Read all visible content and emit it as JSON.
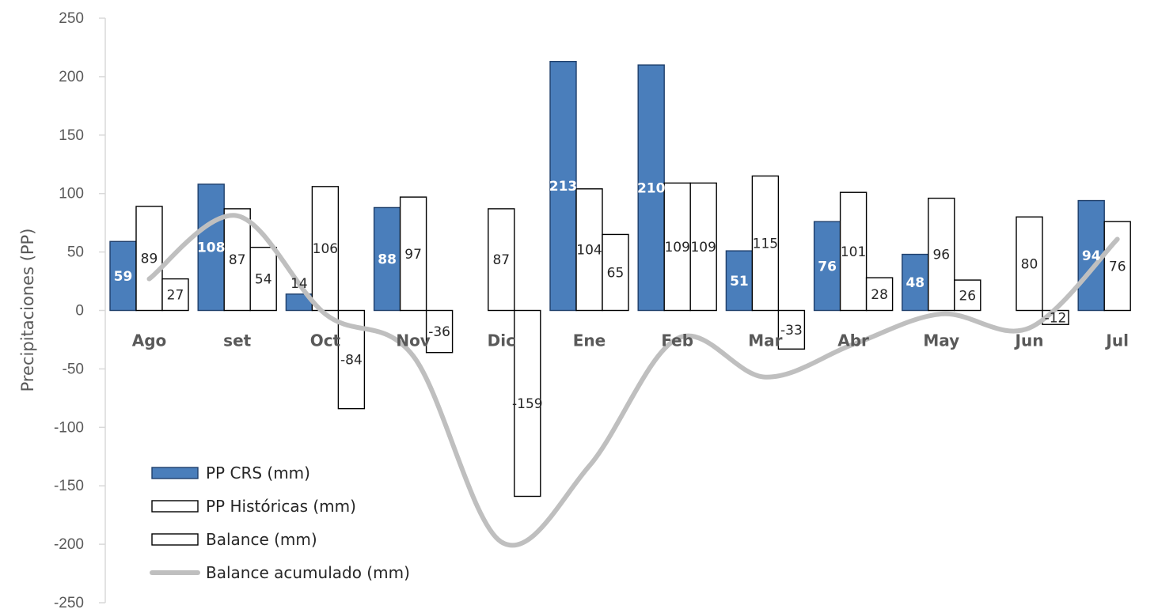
{
  "chart_data": {
    "type": "bar",
    "ylabel": "Precipitaciones (PP)",
    "xlabel": "",
    "ylim": [
      -250,
      250
    ],
    "yticks": [
      250,
      200,
      150,
      100,
      50,
      0,
      -50,
      -100,
      -150,
      -200,
      -250
    ],
    "grid": false,
    "legend_position": "bottom-left",
    "categories": [
      "Ago",
      "set",
      "Oct",
      "Nov",
      "Dic",
      "Ene",
      "Feb",
      "Mar",
      "Abr",
      "May",
      "Jun",
      "Jul"
    ],
    "series": [
      {
        "name": "PP CRS (mm)",
        "type": "bar",
        "color": "#4a7ebb",
        "values": [
          59,
          108,
          14,
          88,
          null,
          213,
          210,
          51,
          76,
          48,
          null,
          94
        ]
      },
      {
        "name": "PP Históricas (mm)",
        "type": "bar",
        "color": "#ffffff",
        "values": [
          89,
          87,
          106,
          97,
          87,
          104,
          109,
          115,
          101,
          96,
          80,
          76
        ]
      },
      {
        "name": "Balance (mm)",
        "type": "bar",
        "color": "#ffffff",
        "values": [
          27,
          54,
          -84,
          -36,
          -159,
          65,
          109,
          -33,
          28,
          26,
          -12,
          null
        ]
      },
      {
        "name": "Balance acumulado (mm)",
        "type": "line",
        "color": "#bfbfbf",
        "values": [
          27,
          81,
          -3,
          -39,
          -198,
          -133,
          -24,
          -57,
          -29,
          -3,
          -15,
          61
        ]
      }
    ]
  }
}
